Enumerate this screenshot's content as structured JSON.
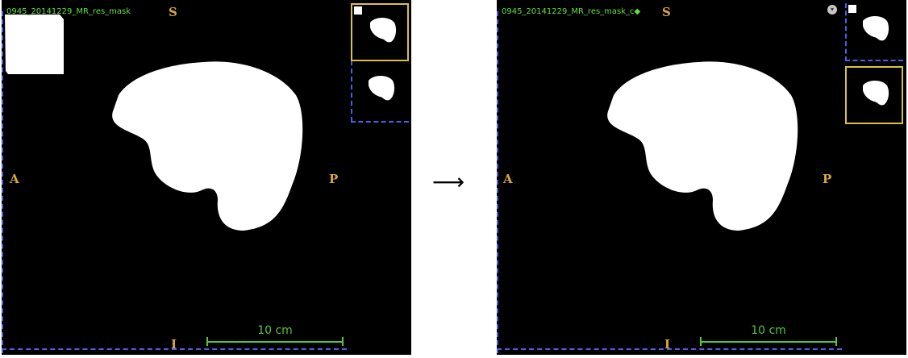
{
  "left_view": {
    "title": "0945_20141229_MR_res_mask",
    "orient_top": "S",
    "orient_left": "A",
    "orient_right": "P",
    "orient_bottom": "I",
    "scale_label": "10 cm"
  },
  "transition_arrow": "⟶",
  "right_view": {
    "title": "0945_20141229_MR_res_mask_c◆",
    "orient_top": "S",
    "orient_left": "A",
    "orient_right": "P",
    "orient_bottom": "I",
    "scale_label": "10 cm",
    "menu_icon": "chevron-down-icon"
  },
  "colors": {
    "overlay_text": "#5fe03f",
    "orientation_marker": "#d9a742",
    "active_thumbnail_border": "#d7c241",
    "dashed_border": "#4c5ee8",
    "scale_bar": "#55c63a",
    "viewport_bg": "#000000",
    "mask": "#ffffff"
  }
}
